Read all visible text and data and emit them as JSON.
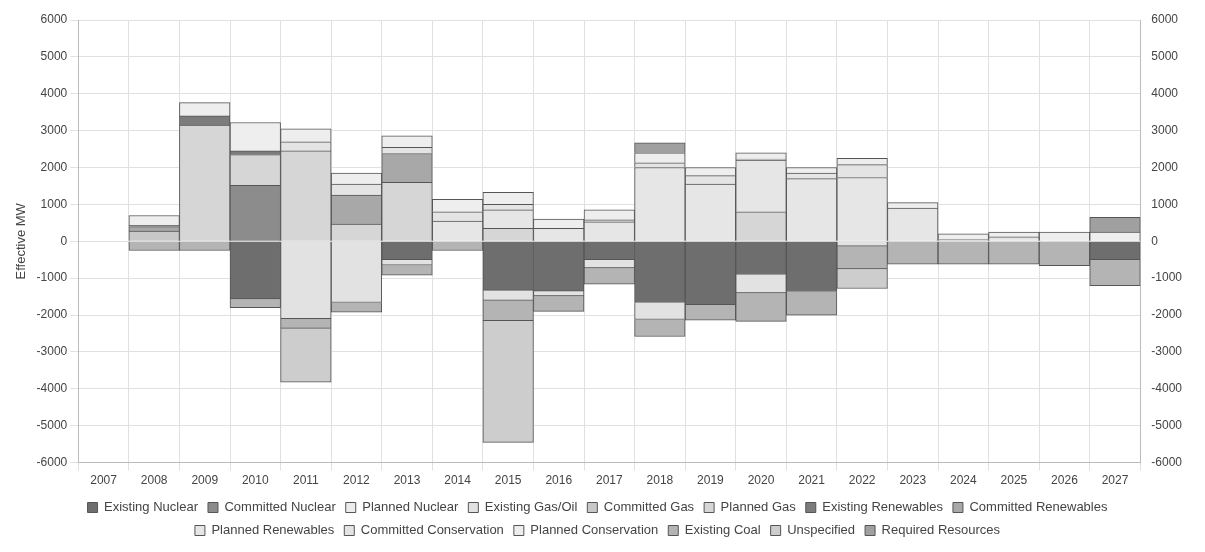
{
  "chart_data": {
    "type": "bar",
    "stacked": true,
    "ylabel": "Effective MW",
    "categories": [
      "2007",
      "2008",
      "2009",
      "2010",
      "2011",
      "2012",
      "2013",
      "2014",
      "2015",
      "2016",
      "2017",
      "2018",
      "2019",
      "2020",
      "2021",
      "2022",
      "2023",
      "2024",
      "2025",
      "2026",
      "2027"
    ],
    "ylim": [
      -6000,
      6000
    ],
    "yticks": [
      -6000,
      -5000,
      -4000,
      -3000,
      -2000,
      -1000,
      0,
      1000,
      2000,
      3000,
      4000,
      5000,
      6000
    ],
    "y2lim": [
      -6000,
      6000
    ],
    "y2ticks": [
      -6000,
      -5000,
      -4000,
      -3000,
      -2000,
      -1000,
      0,
      1000,
      2000,
      3000,
      4000,
      5000,
      6000
    ],
    "grid": true,
    "legend": "bottom",
    "series": [
      {
        "name": "Existing Nuclear",
        "color": "#6e6e6e",
        "values": [
          null,
          null,
          null,
          -1560,
          null,
          null,
          -500,
          null,
          -1330,
          -1350,
          -500,
          -1660,
          -1720,
          -900,
          -1360,
          null,
          null,
          null,
          null,
          null,
          -500
        ]
      },
      {
        "name": "Committed Nuclear",
        "color": "#8c8c8c",
        "values": [
          null,
          null,
          null,
          1520,
          null,
          null,
          null,
          null,
          null,
          null,
          null,
          null,
          null,
          null,
          null,
          null,
          null,
          null,
          null,
          null,
          null
        ]
      },
      {
        "name": "Planned Nuclear",
        "color": "#ececec",
        "values": [
          null,
          null,
          null,
          null,
          null,
          null,
          null,
          null,
          null,
          null,
          null,
          null,
          null,
          null,
          null,
          null,
          null,
          null,
          null,
          null,
          null
        ]
      },
      {
        "name": "Existing Gas/Oil",
        "color": "#e2e2e2",
        "values": [
          null,
          null,
          null,
          null,
          -2100,
          -1660,
          -150,
          null,
          -270,
          -130,
          -220,
          -460,
          null,
          -500,
          null,
          -130,
          null,
          null,
          null,
          null,
          null
        ]
      },
      {
        "name": "Committed Gas",
        "color": "#c8c8c8",
        "values": [
          null,
          280,
          null,
          null,
          null,
          null,
          null,
          null,
          null,
          null,
          null,
          null,
          null,
          null,
          null,
          null,
          null,
          null,
          null,
          null,
          null
        ]
      },
      {
        "name": "Planned Gas",
        "color": "#d6d6d6",
        "values": [
          null,
          null,
          3150,
          830,
          2450,
          470,
          1600,
          null,
          350,
          null,
          null,
          null,
          null,
          800,
          null,
          null,
          null,
          null,
          null,
          null,
          null
        ]
      },
      {
        "name": "Existing Renewables",
        "color": "#7c7c7c",
        "values": [
          null,
          null,
          250,
          100,
          null,
          null,
          null,
          null,
          null,
          null,
          null,
          null,
          null,
          null,
          null,
          null,
          null,
          null,
          null,
          null,
          null
        ]
      },
      {
        "name": "Committed Renewables",
        "color": "#a8a8a8",
        "values": [
          null,
          120,
          null,
          null,
          null,
          780,
          780,
          null,
          null,
          null,
          null,
          null,
          null,
          null,
          null,
          null,
          null,
          null,
          null,
          null,
          null
        ]
      },
      {
        "name": "Planned Renewables",
        "color": "#e6e6e6",
        "values": [
          null,
          null,
          null,
          null,
          null,
          null,
          null,
          550,
          500,
          350,
          530,
          2000,
          1550,
          1400,
          1700,
          1730,
          900,
          50,
          120,
          null,
          null
        ]
      },
      {
        "name": "Committed Conservation",
        "color": "#e4e4e4",
        "values": [
          null,
          30,
          null,
          null,
          250,
          300,
          170,
          250,
          150,
          null,
          50,
          130,
          230,
          30,
          150,
          350,
          null,
          null,
          null,
          null,
          null
        ]
      },
      {
        "name": "Planned Conservation",
        "color": "#eeeeee",
        "values": [
          null,
          270,
          360,
          770,
          350,
          300,
          310,
          340,
          330,
          250,
          270,
          270,
          220,
          170,
          150,
          170,
          150,
          150,
          130,
          250,
          250
        ]
      },
      {
        "name": "Existing Coal",
        "color": "#b4b4b4",
        "values": [
          null,
          -250,
          -250,
          -240,
          -260,
          -260,
          -270,
          -250,
          -550,
          -420,
          -440,
          -460,
          -420,
          -770,
          -640,
          -620,
          -620,
          -620,
          -620,
          -660,
          -700
        ]
      },
      {
        "name": "Unspecified",
        "color": "#cdcdcd",
        "values": [
          null,
          null,
          null,
          null,
          -1460,
          null,
          null,
          null,
          -3300,
          null,
          null,
          null,
          null,
          null,
          null,
          -530,
          null,
          null,
          null,
          null,
          null
        ]
      },
      {
        "name": "Required Resources",
        "color": "#a0a0a0",
        "values": [
          null,
          null,
          null,
          null,
          null,
          null,
          null,
          null,
          null,
          null,
          null,
          270,
          null,
          null,
          null,
          null,
          null,
          null,
          null,
          null,
          400
        ]
      }
    ]
  }
}
